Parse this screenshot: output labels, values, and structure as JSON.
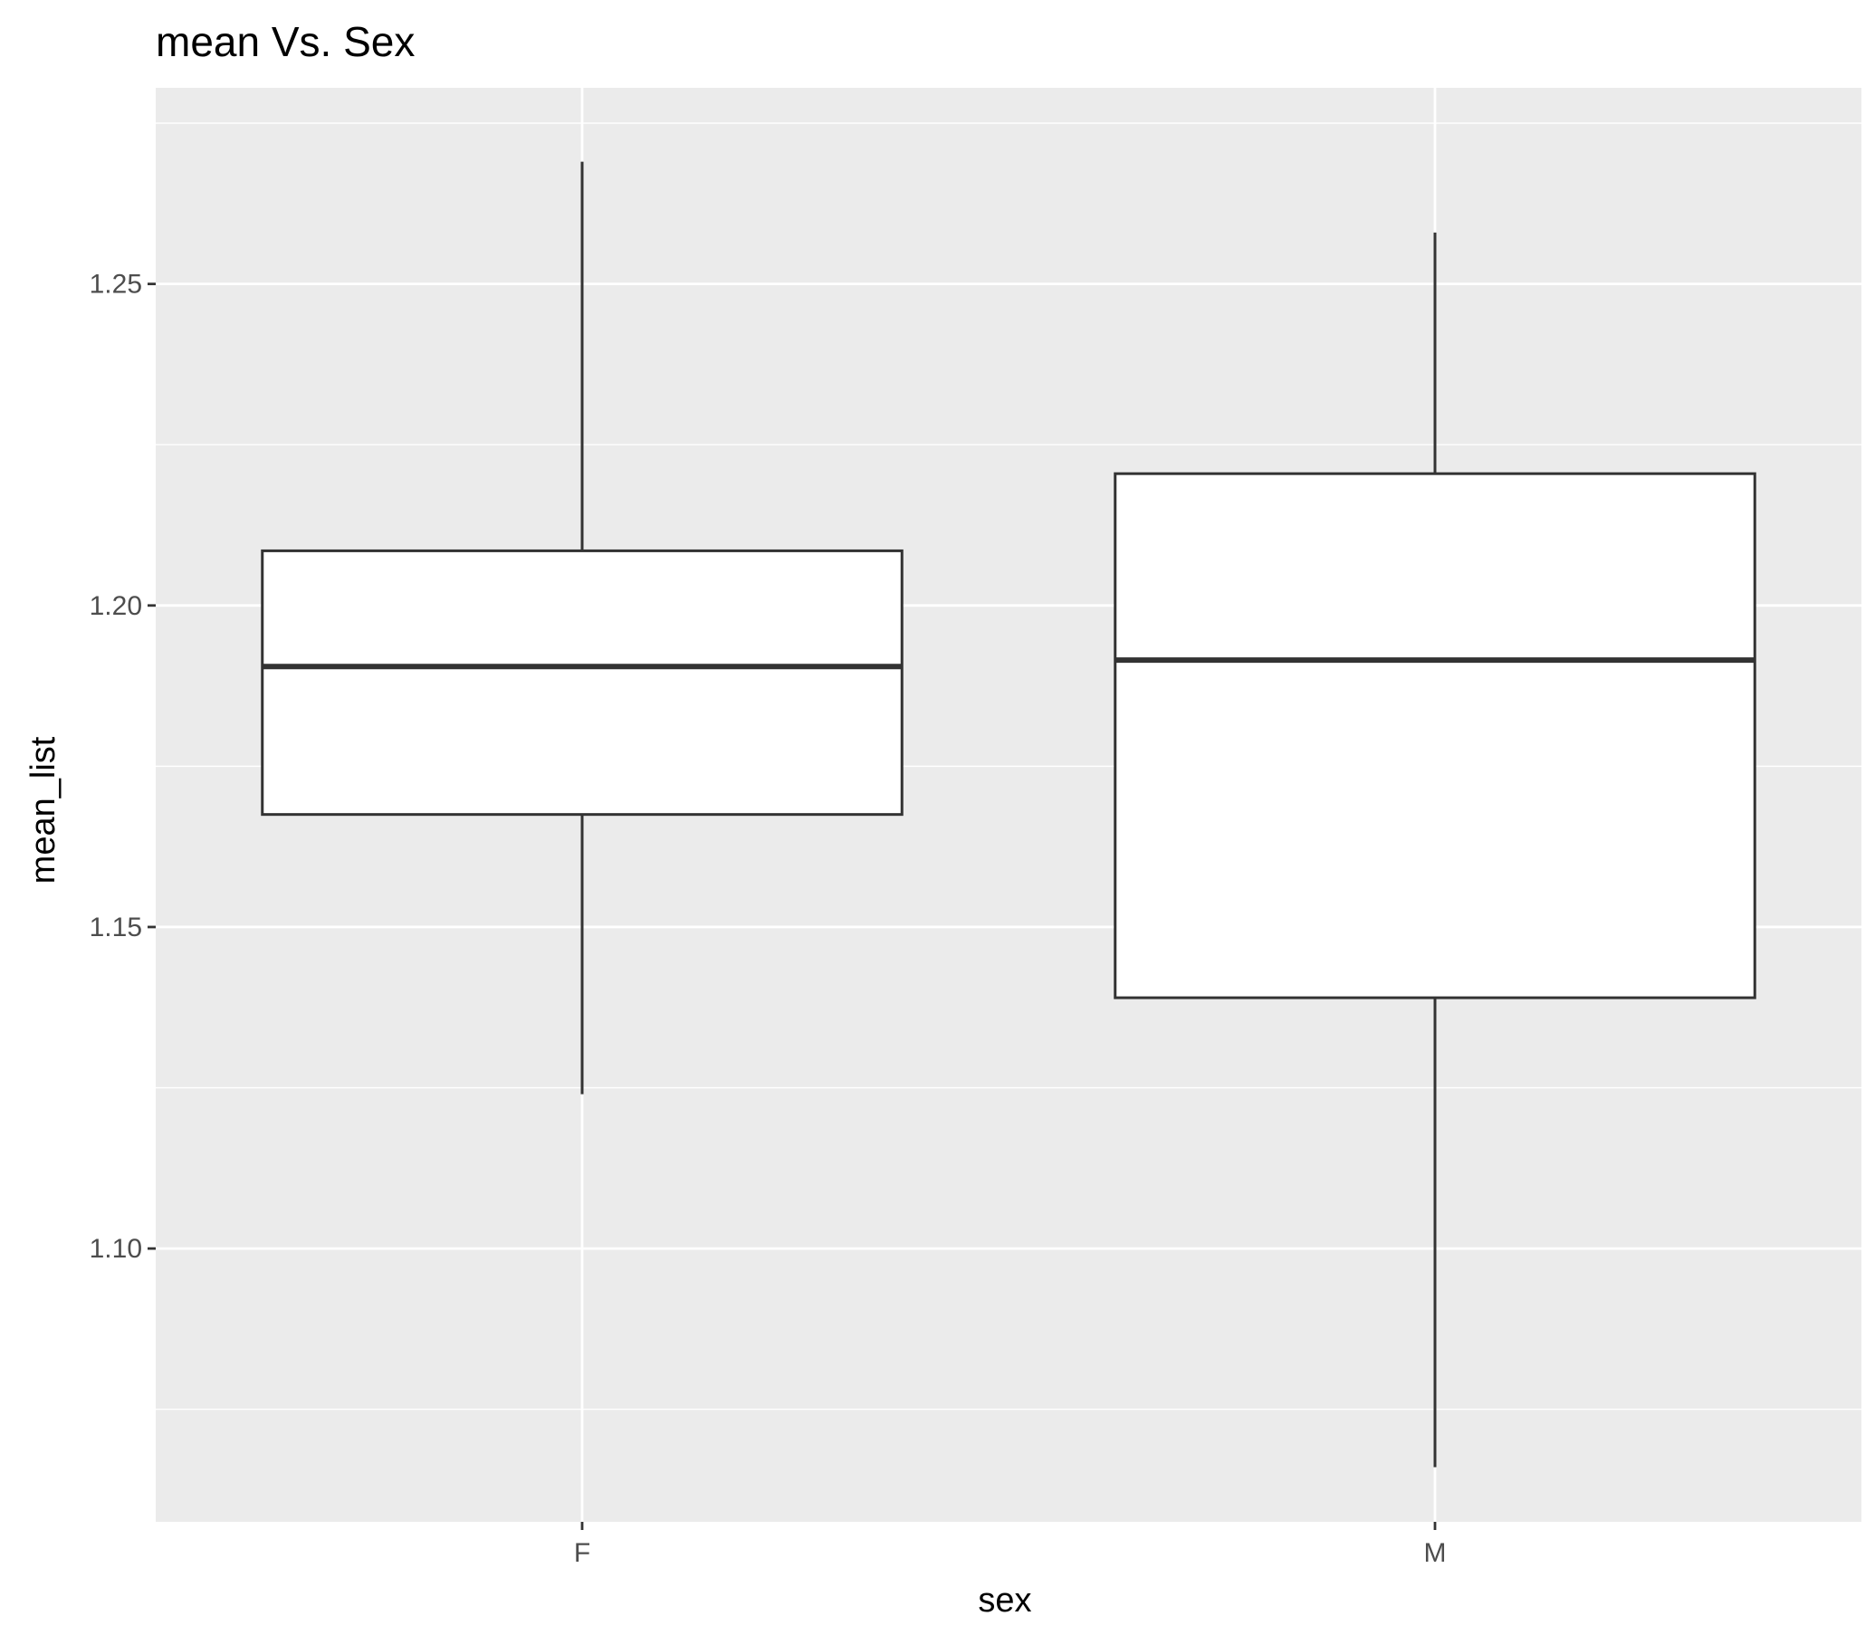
{
  "chart_data": {
    "type": "boxplot",
    "title": "mean Vs. Sex",
    "xlabel": "sex",
    "ylabel": "mean_list",
    "categories": [
      "F",
      "M"
    ],
    "boxes": [
      {
        "category": "F",
        "lower_whisker": 1.124,
        "q1": 1.1675,
        "median": 1.1905,
        "q3": 1.2085,
        "upper_whisker": 1.269
      },
      {
        "category": "M",
        "lower_whisker": 1.066,
        "q1": 1.139,
        "median": 1.1915,
        "q3": 1.2205,
        "upper_whisker": 1.258
      }
    ],
    "ylim": [
      1.0575,
      1.2805
    ],
    "yticks": [
      1.1,
      1.15,
      1.2,
      1.25
    ],
    "ytick_labels": [
      "1.10",
      "1.15",
      "1.20",
      "1.25"
    ],
    "grid": true,
    "legend": "none",
    "colors": {
      "panel_background": "#ebebeb",
      "grid_major": "#ffffff",
      "grid_minor": "#ffffff",
      "box_fill": "#ffffff",
      "box_stroke": "#333333",
      "tick_mark": "#333333",
      "tick_label": "#4d4d4d",
      "title_text": "#000000"
    }
  }
}
